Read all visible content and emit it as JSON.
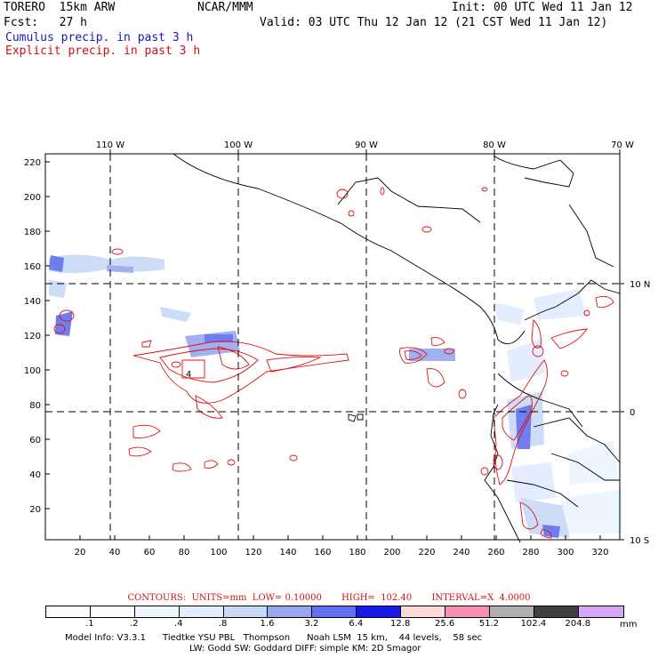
{
  "header": {
    "model": "TORERO  15km ARW",
    "org": "NCAR/MMM",
    "init": "Init: 00 UTC Wed 11 Jan 12",
    "fcst": "Fcst:   27 h",
    "valid": "Valid: 03 UTC Thu 12 Jan 12 (21 CST Wed 11 Jan 12)",
    "cumulus": "Cumulus precip. in past 3 h",
    "explicit": "Explicit precip. in past 3 h"
  },
  "map": {
    "lon_labels": [
      "110 W",
      "100 W",
      "90 W",
      "80 W",
      "70 W"
    ],
    "lat_labels": [
      "10 N",
      "0",
      "10 S"
    ],
    "y_ticks": [
      "220",
      "200",
      "180",
      "160",
      "140",
      "120",
      "100",
      "80",
      "60",
      "40",
      "20"
    ],
    "x_ticks": [
      "20",
      "40",
      "60",
      "80",
      "100",
      "120",
      "140",
      "160",
      "180",
      "200",
      "220",
      "240",
      "260",
      "280",
      "300",
      "320"
    ],
    "contour_label": "4"
  },
  "footer": {
    "contours": "CONTOURS:  UNITS=mm  LOW= 0.10000       HIGH=  102.40       INTERVAL=X  4.0000",
    "scale_labels": [
      ".1",
      ".2",
      ".4",
      ".8",
      "1.6",
      "3.2",
      "6.4",
      "12.8",
      "25.6",
      "51.2",
      "102.4",
      "204.8"
    ],
    "scale_unit": "mm",
    "scale_colors": [
      "#ffffff",
      "#ffffff",
      "#ecf4ff",
      "#e0ecff",
      "#c8daf8",
      "#98a8ee",
      "#6070ee",
      "#1818e8",
      "#ffd8d8",
      "#f890b8",
      "#b0b0b0",
      "#404040",
      "#d8a8f8"
    ],
    "model_info_1": "Model Info: V3.3.1      Tiedtke YSU PBL   Thompson      Noah LSM  15 km,    44 levels,    58 sec",
    "model_info_2": "LW: Godd SW: Goddard DIFF: simple KM: 2D Smagor"
  }
}
